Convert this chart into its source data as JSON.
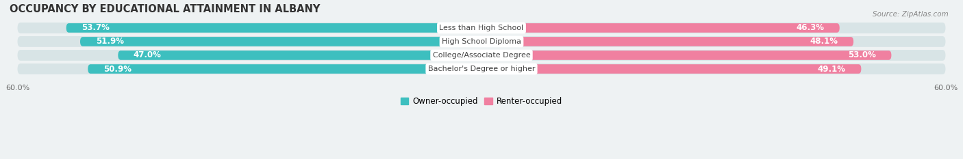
{
  "title": "OCCUPANCY BY EDUCATIONAL ATTAINMENT IN ALBANY",
  "source": "Source: ZipAtlas.com",
  "categories": [
    "Less than High School",
    "High School Diploma",
    "College/Associate Degree",
    "Bachelor's Degree or higher"
  ],
  "owner_values": [
    53.7,
    51.9,
    47.0,
    50.9
  ],
  "renter_values": [
    46.3,
    48.1,
    53.0,
    49.1
  ],
  "owner_color": "#3DBFBF",
  "renter_color": "#F080A0",
  "owner_color_light": "#B8E0E0",
  "renter_color_light": "#F8C0D0",
  "axis_limit": 60.0,
  "bar_height": 0.68,
  "background_color": "#eef2f3",
  "bar_bg_color_left": "#dce8ea",
  "bar_bg_color_right": "#dce8ea",
  "title_fontsize": 10.5,
  "label_fontsize": 8.0,
  "value_fontsize": 8.5,
  "tick_fontsize": 8,
  "legend_fontsize": 8.5,
  "legend_label_owner": "Owner-occupied",
  "legend_label_renter": "Renter-occupied"
}
